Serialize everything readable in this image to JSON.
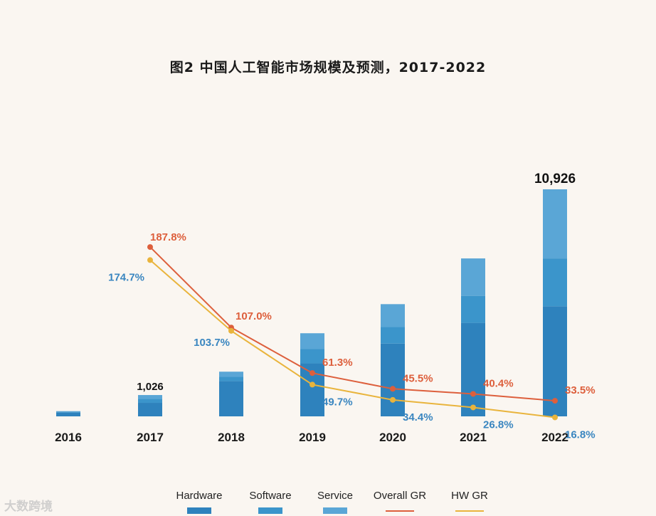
{
  "chart_data": {
    "type": "bar",
    "title": "图2 中国人工智能市场规模及预测，2017-2022",
    "categories": [
      "2016",
      "2017",
      "2018",
      "2019",
      "2020",
      "2021",
      "2022"
    ],
    "ylim": [
      0,
      11000
    ],
    "series": [
      {
        "name": "Hardware",
        "type": "bar",
        "values": [
          180,
          650,
          1700,
          2550,
          3500,
          4500,
          5300
        ]
      },
      {
        "name": "Software",
        "type": "bar",
        "values": [
          40,
          200,
          200,
          700,
          800,
          1300,
          2300
        ]
      },
      {
        "name": "Service",
        "type": "bar",
        "values": [
          30,
          176,
          250,
          750,
          1100,
          1800,
          3326
        ]
      },
      {
        "name": "Overall GR",
        "type": "line",
        "x": [
          "2017",
          "2018",
          "2019",
          "2020",
          "2021",
          "2022"
        ],
        "values": [
          187.8,
          107.0,
          61.3,
          45.5,
          40.4,
          33.5
        ],
        "labels": [
          "187.8%",
          "107.0%",
          "61.3%",
          "45.5%",
          "40.4%",
          "33.5%"
        ]
      },
      {
        "name": "HW GR",
        "type": "line",
        "x": [
          "2017",
          "2018",
          "2019",
          "2020",
          "2021",
          "2022"
        ],
        "values": [
          174.7,
          103.7,
          49.7,
          34.4,
          26.8,
          16.8
        ],
        "labels": [
          "174.7%",
          "103.7%",
          "49.7%",
          "34.4%",
          "26.8%",
          "16.8%"
        ]
      }
    ],
    "total_labels": [
      {
        "category": "2017",
        "text": "1,026"
      },
      {
        "category": "2022",
        "text": "10,926"
      }
    ],
    "legend": "bottom",
    "grid": false
  },
  "colors": {
    "hardware": "#2e82bd",
    "software": "#3b95cb",
    "service": "#5aa6d6",
    "overall_gr": "#dd5f3c",
    "hw_gr": "#e9b43c",
    "overall_label": "#dd5f3c",
    "hw_label": "#3a86c0",
    "axis_text": "#1a1a1a"
  },
  "watermark": "大数跨境"
}
